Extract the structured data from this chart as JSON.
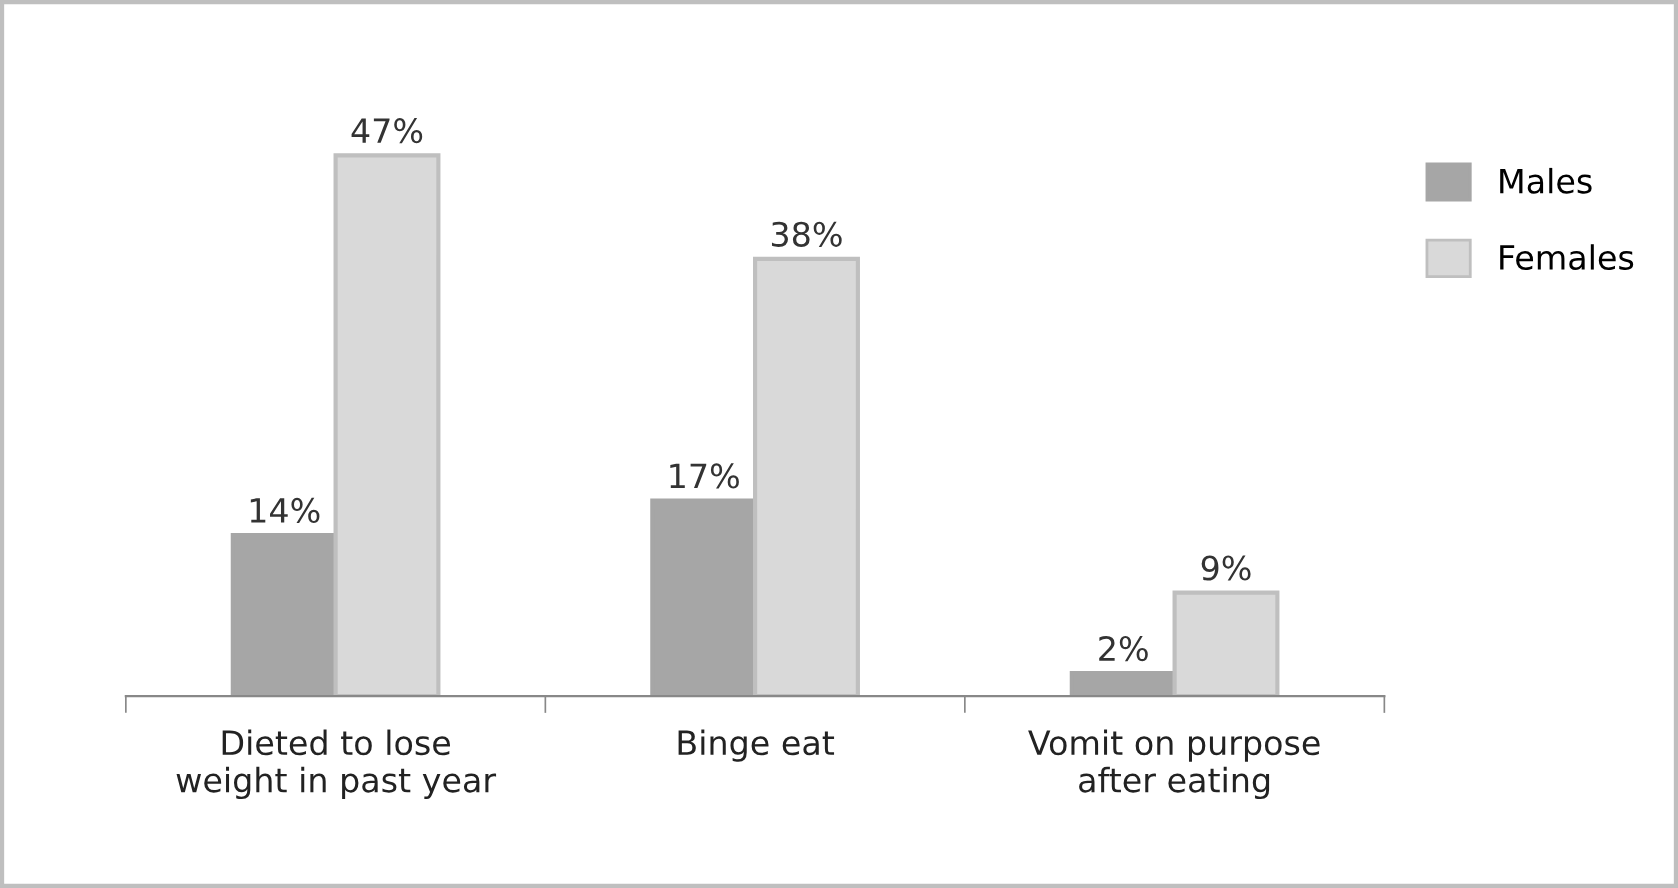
{
  "chart_data": {
    "type": "bar",
    "categories": [
      "Dieted to lose\nweight in past year",
      "Binge eat",
      "Vomit on purpose\nafter eating"
    ],
    "series": [
      {
        "name": "Males",
        "color": "#a6a6a6",
        "values": [
          14,
          17,
          2
        ],
        "value_labels": [
          "14%",
          "17%",
          "2%"
        ]
      },
      {
        "name": "Females",
        "color": "#d9d9d9",
        "values": [
          47,
          38,
          9
        ],
        "value_labels": [
          "47%",
          "38%",
          "9%"
        ]
      }
    ],
    "legend": "right",
    "grid": false
  }
}
